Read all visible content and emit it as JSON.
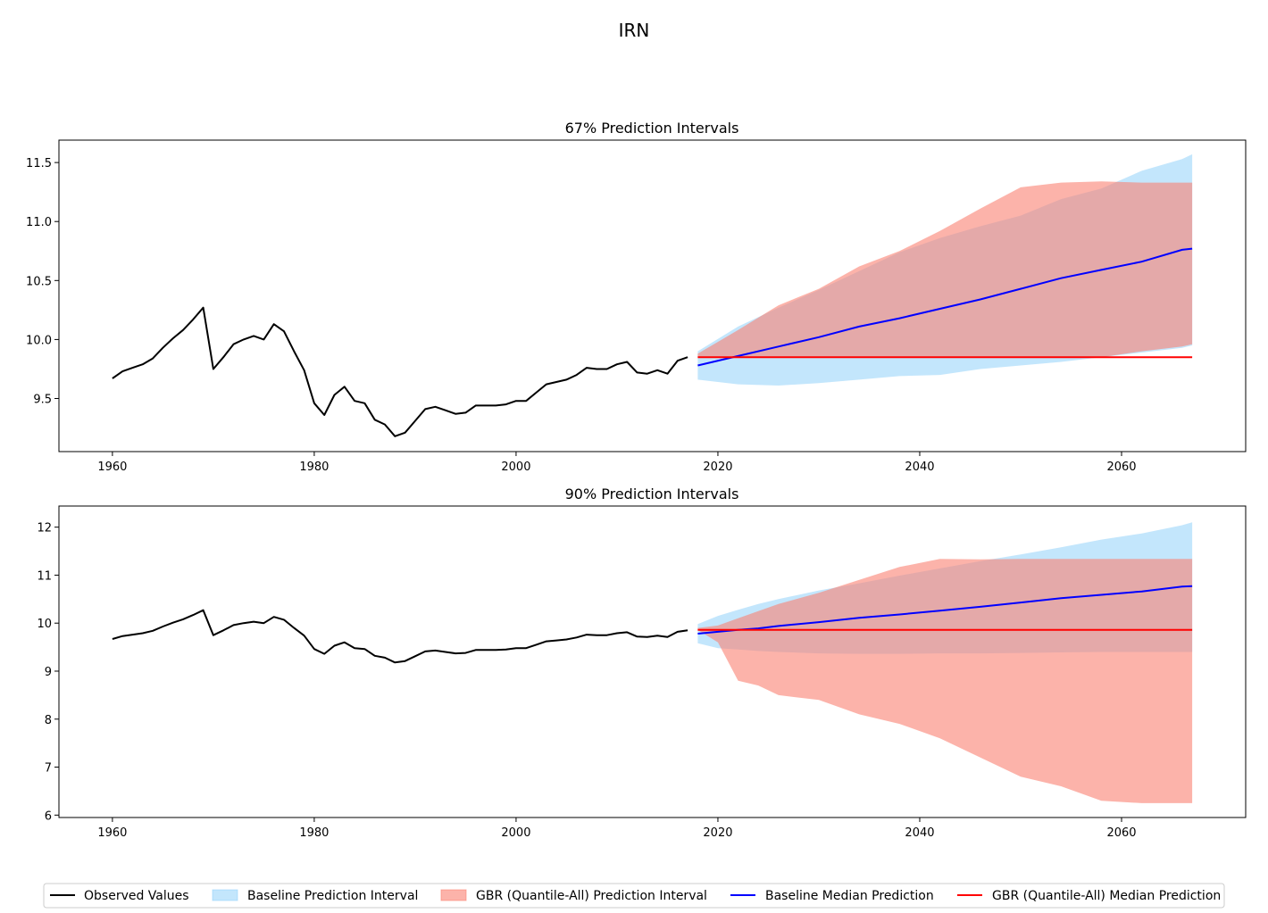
{
  "figure_title": "IRN",
  "legend": {
    "observed": "Observed Values",
    "baseline_interval": "Baseline Prediction Interval",
    "gbr_interval": "GBR (Quantile-All) Prediction Interval",
    "baseline_median": "Baseline Median Prediction",
    "gbr_median": "GBR (Quantile-All) Median Prediction"
  },
  "colors": {
    "observed": "#000000",
    "baseline_fill": "#87CEFA",
    "gbr_fill": "#FA8072",
    "baseline_median": "#0000FF",
    "gbr_median": "#FF0000"
  },
  "chart_data": [
    {
      "type": "line",
      "title": "67% Prediction Intervals",
      "xlim": [
        1954.7,
        2072.3
      ],
      "ylim": [
        9.05,
        11.69
      ],
      "xticks": [
        1960,
        1980,
        2000,
        2020,
        2040,
        2060
      ],
      "yticks": [
        9.5,
        10.0,
        10.5,
        11.0,
        11.5
      ],
      "ytick_labels": [
        "9.5",
        "10.0",
        "10.5",
        "11.0",
        "11.5"
      ],
      "grid": false,
      "observed": {
        "x": [
          1960,
          1961,
          1962,
          1963,
          1964,
          1965,
          1966,
          1967,
          1968,
          1969,
          1970,
          1971,
          1972,
          1973,
          1974,
          1975,
          1976,
          1977,
          1978,
          1979,
          1980,
          1981,
          1982,
          1983,
          1984,
          1985,
          1986,
          1987,
          1988,
          1989,
          1990,
          1991,
          1992,
          1993,
          1994,
          1995,
          1996,
          1997,
          1998,
          1999,
          2000,
          2001,
          2002,
          2003,
          2004,
          2005,
          2006,
          2007,
          2008,
          2009,
          2010,
          2011,
          2012,
          2013,
          2014,
          2015,
          2016,
          2017
        ],
        "y": [
          9.67,
          9.73,
          9.76,
          9.79,
          9.84,
          9.93,
          10.01,
          10.08,
          10.17,
          10.27,
          9.75,
          9.85,
          9.96,
          10.0,
          10.03,
          10.0,
          10.13,
          10.07,
          9.9,
          9.74,
          9.46,
          9.36,
          9.53,
          9.6,
          9.48,
          9.46,
          9.32,
          9.28,
          9.18,
          9.21,
          9.31,
          9.41,
          9.43,
          9.4,
          9.37,
          9.38,
          9.44,
          9.44,
          9.44,
          9.45,
          9.48,
          9.48,
          9.55,
          9.62,
          9.64,
          9.66,
          9.7,
          9.76,
          9.75,
          9.75,
          9.79,
          9.81,
          9.72,
          9.71,
          9.74,
          9.71,
          9.82,
          9.85
        ]
      },
      "forecast_x": [
        2018,
        2022,
        2026,
        2030,
        2034,
        2038,
        2042,
        2046,
        2050,
        2054,
        2058,
        2062,
        2066,
        2067
      ],
      "baseline_median": [
        9.78,
        9.86,
        9.94,
        10.02,
        10.11,
        10.18,
        10.26,
        10.34,
        10.43,
        10.52,
        10.59,
        10.66,
        10.76,
        10.77
      ],
      "baseline_lower": [
        9.66,
        9.62,
        9.61,
        9.63,
        9.66,
        9.69,
        9.7,
        9.75,
        9.78,
        9.81,
        9.85,
        9.89,
        9.93,
        9.95
      ],
      "baseline_upper": [
        9.9,
        10.11,
        10.27,
        10.42,
        10.58,
        10.74,
        10.86,
        10.96,
        11.05,
        11.19,
        11.28,
        11.43,
        11.53,
        11.57
      ],
      "gbr_median": [
        9.85,
        9.85,
        9.85,
        9.85,
        9.85,
        9.85,
        9.85,
        9.85,
        9.85,
        9.85,
        9.85,
        9.85,
        9.85,
        9.85
      ],
      "gbr_lower": [
        9.85,
        9.85,
        9.85,
        9.85,
        9.85,
        9.85,
        9.85,
        9.85,
        9.85,
        9.85,
        9.85,
        9.9,
        9.94,
        9.96
      ],
      "gbr_upper": [
        9.88,
        10.08,
        10.29,
        10.43,
        10.62,
        10.75,
        10.92,
        11.11,
        11.29,
        11.33,
        11.34,
        11.33,
        11.33,
        11.33
      ]
    },
    {
      "type": "line",
      "title": "90% Prediction Intervals",
      "xlim": [
        1954.7,
        2072.3
      ],
      "ylim": [
        5.95,
        12.44
      ],
      "xticks": [
        1960,
        1980,
        2000,
        2020,
        2040,
        2060
      ],
      "yticks": [
        6,
        7,
        8,
        9,
        10,
        11,
        12
      ],
      "ytick_labels": [
        "6",
        "7",
        "8",
        "9",
        "10",
        "11",
        "12"
      ],
      "grid": false,
      "observed": {
        "x": [
          1960,
          1961,
          1962,
          1963,
          1964,
          1965,
          1966,
          1967,
          1968,
          1969,
          1970,
          1971,
          1972,
          1973,
          1974,
          1975,
          1976,
          1977,
          1978,
          1979,
          1980,
          1981,
          1982,
          1983,
          1984,
          1985,
          1986,
          1987,
          1988,
          1989,
          1990,
          1991,
          1992,
          1993,
          1994,
          1995,
          1996,
          1997,
          1998,
          1999,
          2000,
          2001,
          2002,
          2003,
          2004,
          2005,
          2006,
          2007,
          2008,
          2009,
          2010,
          2011,
          2012,
          2013,
          2014,
          2015,
          2016,
          2017
        ],
        "y": [
          9.67,
          9.73,
          9.76,
          9.79,
          9.84,
          9.93,
          10.01,
          10.08,
          10.17,
          10.27,
          9.75,
          9.85,
          9.96,
          10.0,
          10.03,
          10.0,
          10.13,
          10.07,
          9.9,
          9.74,
          9.46,
          9.36,
          9.53,
          9.6,
          9.48,
          9.46,
          9.32,
          9.28,
          9.18,
          9.21,
          9.31,
          9.41,
          9.43,
          9.4,
          9.37,
          9.38,
          9.44,
          9.44,
          9.44,
          9.45,
          9.48,
          9.48,
          9.55,
          9.62,
          9.64,
          9.66,
          9.7,
          9.76,
          9.75,
          9.75,
          9.79,
          9.81,
          9.72,
          9.71,
          9.74,
          9.71,
          9.82,
          9.85
        ]
      },
      "forecast_x": [
        2018,
        2020,
        2022,
        2024,
        2026,
        2030,
        2034,
        2038,
        2042,
        2046,
        2050,
        2054,
        2058,
        2062,
        2066,
        2067
      ],
      "baseline_median": [
        9.78,
        9.82,
        9.86,
        9.89,
        9.94,
        10.02,
        10.11,
        10.18,
        10.26,
        10.34,
        10.43,
        10.52,
        10.59,
        10.66,
        10.76,
        10.77
      ],
      "baseline_lower": [
        9.58,
        9.48,
        9.45,
        9.42,
        9.4,
        9.37,
        9.36,
        9.36,
        9.37,
        9.37,
        9.38,
        9.39,
        9.4,
        9.4,
        9.4,
        9.4
      ],
      "baseline_upper": [
        9.98,
        10.15,
        10.28,
        10.4,
        10.5,
        10.68,
        10.83,
        10.99,
        11.14,
        11.29,
        11.43,
        11.58,
        11.74,
        11.87,
        12.04,
        12.1
      ],
      "gbr_median": [
        9.86,
        9.86,
        9.86,
        9.86,
        9.86,
        9.86,
        9.86,
        9.86,
        9.86,
        9.86,
        9.86,
        9.86,
        9.86,
        9.86,
        9.86,
        9.86
      ],
      "gbr_lower": [
        9.86,
        9.6,
        8.8,
        8.7,
        8.5,
        8.4,
        8.1,
        7.9,
        7.6,
        7.2,
        6.8,
        6.6,
        6.3,
        6.25,
        6.25,
        6.25
      ],
      "gbr_upper": [
        9.9,
        9.95,
        10.1,
        10.25,
        10.4,
        10.63,
        10.9,
        11.17,
        11.34,
        11.33,
        11.34,
        11.34,
        11.34,
        11.34,
        11.34,
        11.34
      ]
    }
  ]
}
